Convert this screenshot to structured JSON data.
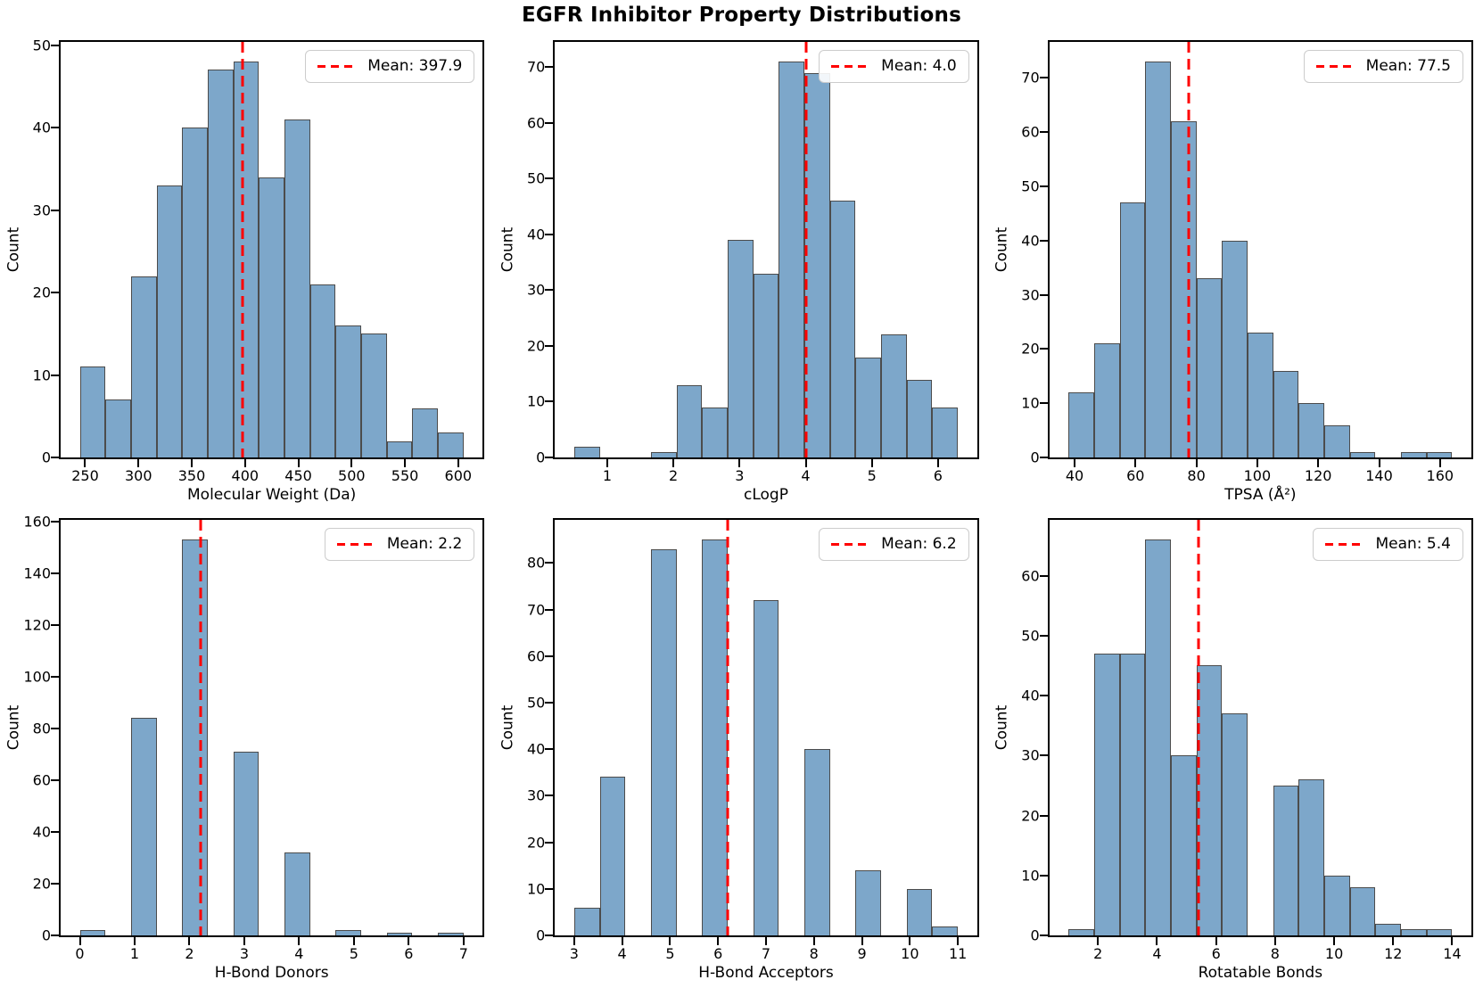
{
  "figure": {
    "title": "EGFR Inhibitor Property Distributions",
    "colors": {
      "bar_fill": "#7DA7CA",
      "bar_edge": "#4C4C4C",
      "mean_line": "#FF0000",
      "legend_border": "#CCCCCC",
      "axis": "#000000"
    }
  },
  "chart_data": [
    {
      "type": "bar",
      "title": "",
      "xlabel": "Molecular Weight (Da)",
      "ylabel": "Count",
      "legend_label": "Mean: 397.9",
      "legend_position": "upper right",
      "mean": 397.9,
      "bin_start": 245,
      "bin_width": 24,
      "counts": [
        11,
        7,
        22,
        33,
        40,
        47,
        48,
        34,
        41,
        21,
        16,
        15,
        2,
        6,
        3
      ],
      "xlim": [
        227,
        623
      ],
      "ylim": [
        0,
        50.4
      ],
      "xticks": [
        250,
        300,
        350,
        400,
        450,
        500,
        550,
        600
      ],
      "yticks": [
        0,
        10,
        20,
        30,
        40,
        50
      ],
      "grid": false
    },
    {
      "type": "bar",
      "title": "",
      "xlabel": "cLogP",
      "ylabel": "Count",
      "legend_label": "Mean: 4.0",
      "legend_position": "upper right",
      "mean": 4.0,
      "bin_start": 0.5,
      "bin_width": 0.3866666667,
      "counts": [
        2,
        0,
        0,
        1,
        13,
        9,
        39,
        33,
        71,
        69,
        46,
        18,
        22,
        14,
        9
      ],
      "xlim": [
        0.21,
        6.59
      ],
      "ylim": [
        0,
        74.55
      ],
      "xticks": [
        1,
        2,
        3,
        4,
        5,
        6
      ],
      "yticks": [
        0,
        10,
        20,
        30,
        40,
        50,
        60,
        70
      ],
      "grid": false
    },
    {
      "type": "bar",
      "title": "",
      "xlabel": "TPSA (Å²)",
      "ylabel": "Count",
      "legend_label": "Mean: 77.5",
      "legend_position": "upper right",
      "mean": 77.5,
      "bin_start": 38,
      "bin_width": 8.4,
      "counts": [
        12,
        21,
        47,
        73,
        62,
        33,
        40,
        23,
        16,
        10,
        6,
        1,
        0,
        1,
        1
      ],
      "xlim": [
        31.7,
        170.3
      ],
      "ylim": [
        0,
        76.65
      ],
      "xticks": [
        40,
        60,
        80,
        100,
        120,
        140,
        160
      ],
      "yticks": [
        0,
        10,
        20,
        30,
        40,
        50,
        60,
        70
      ],
      "grid": false
    },
    {
      "type": "bar",
      "title": "",
      "xlabel": "H-Bond Donors",
      "ylabel": "Count",
      "legend_label": "Mean: 2.2",
      "legend_position": "upper right",
      "mean": 2.2,
      "bin_start": 0,
      "bin_width": 0.4666666667,
      "counts": [
        2,
        0,
        84,
        0,
        153,
        0,
        71,
        0,
        32,
        0,
        2,
        0,
        1,
        0,
        1
      ],
      "xlim": [
        -0.35,
        7.35
      ],
      "ylim": [
        0,
        160.65
      ],
      "xticks": [
        0,
        1,
        2,
        3,
        4,
        5,
        6,
        7
      ],
      "yticks": [
        0,
        20,
        40,
        60,
        80,
        100,
        120,
        140,
        160
      ],
      "grid": false
    },
    {
      "type": "bar",
      "title": "",
      "xlabel": "H-Bond Acceptors",
      "ylabel": "Count",
      "legend_label": "Mean: 6.2",
      "legend_position": "upper right",
      "mean": 6.2,
      "bin_start": 3,
      "bin_width": 0.5333333333,
      "counts": [
        6,
        34,
        0,
        83,
        0,
        85,
        0,
        72,
        0,
        40,
        0,
        14,
        0,
        10,
        2
      ],
      "xlim": [
        2.6,
        11.4
      ],
      "ylim": [
        0,
        89.25
      ],
      "xticks": [
        3,
        4,
        5,
        6,
        7,
        8,
        9,
        10,
        11
      ],
      "yticks": [
        0,
        10,
        20,
        30,
        40,
        50,
        60,
        70,
        80
      ],
      "grid": false
    },
    {
      "type": "bar",
      "title": "",
      "xlabel": "Rotatable Bonds",
      "ylabel": "Count",
      "legend_label": "Mean: 5.4",
      "legend_position": "upper right",
      "mean": 5.4,
      "bin_start": 1,
      "bin_width": 0.8666666667,
      "counts": [
        1,
        47,
        47,
        66,
        30,
        45,
        37,
        0,
        25,
        26,
        10,
        8,
        2,
        1,
        1
      ],
      "xlim": [
        0.35,
        14.65
      ],
      "ylim": [
        0,
        69.3
      ],
      "xticks": [
        2,
        4,
        6,
        8,
        10,
        12,
        14
      ],
      "yticks": [
        0,
        10,
        20,
        30,
        40,
        50,
        60
      ],
      "grid": false
    }
  ]
}
